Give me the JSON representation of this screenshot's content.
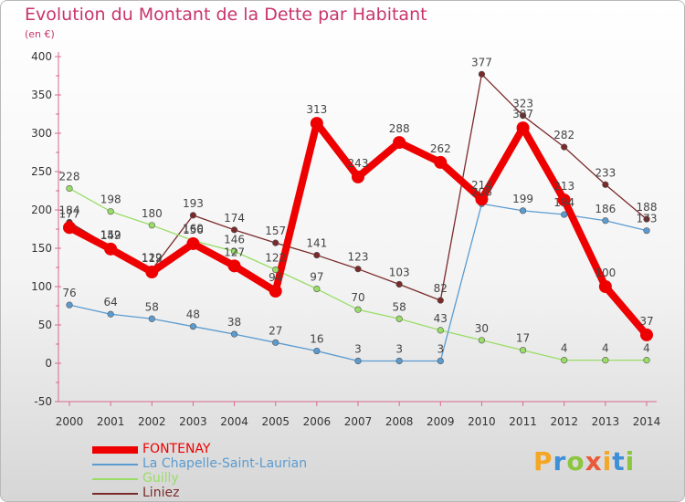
{
  "title": "Evolution du Montant de la Dette par Habitant",
  "subtitle": "(en €)",
  "logo": "Proxiti",
  "chart_data": {
    "type": "line",
    "title": "Evolution du Montant de la Dette par Habitant",
    "ylabel": "(en €)",
    "ylim": [
      -50,
      400
    ],
    "yticks": [
      -50,
      0,
      50,
      100,
      150,
      200,
      250,
      300,
      350,
      400
    ],
    "x": [
      "2000",
      "2001",
      "2002",
      "2003",
      "2004",
      "2005",
      "2006",
      "2007",
      "2008",
      "2009",
      "2010",
      "2011",
      "2012",
      "2013",
      "2014"
    ],
    "grid": false,
    "legend": "bottom-left",
    "series": [
      {
        "name": "FONTENAY",
        "color": "#ee0000",
        "values": [
          177,
          149,
          119,
          156,
          127,
          94,
          313,
          243,
          288,
          262,
          214,
          307,
          213,
          100,
          37
        ]
      },
      {
        "name": "La Chapelle-Saint-Laurian",
        "color": "#5b9bd0",
        "values": [
          76,
          64,
          58,
          48,
          38,
          27,
          16,
          3,
          3,
          3,
          208,
          199,
          194,
          186,
          173
        ]
      },
      {
        "name": "Guilly",
        "color": "#99dd66",
        "values": [
          228,
          198,
          180,
          160,
          146,
          122,
          97,
          70,
          58,
          43,
          30,
          17,
          4,
          4,
          4
        ]
      },
      {
        "name": "Liniez",
        "color": "#7a2a2a",
        "values": [
          184,
          152,
          122,
          193,
          174,
          157,
          141,
          123,
          103,
          82,
          377,
          323,
          282,
          233,
          188
        ]
      }
    ]
  }
}
